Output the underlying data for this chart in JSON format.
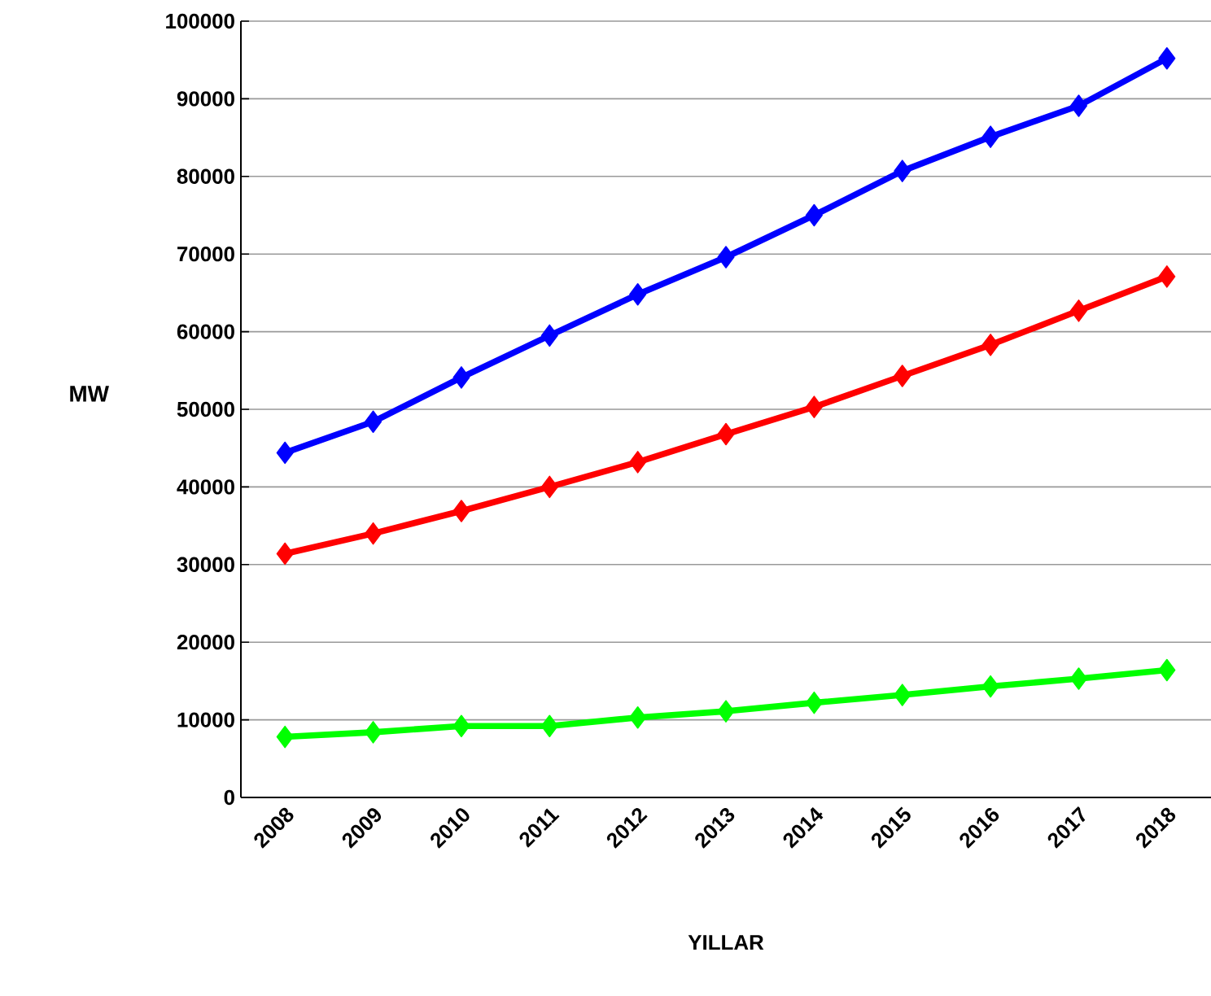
{
  "chart_data": {
    "type": "line",
    "xlabel": "YILLAR",
    "ylabel": "MW",
    "categories": [
      "2008",
      "2009",
      "2010",
      "2011",
      "2012",
      "2013",
      "2014",
      "2015",
      "2016",
      "2017",
      "2018"
    ],
    "series": [
      {
        "color": "#0000ff",
        "values": [
          44400,
          48400,
          54100,
          59500,
          64800,
          69600,
          75000,
          80700,
          85100,
          89100,
          95200
        ]
      },
      {
        "color": "#ff0000",
        "values": [
          31400,
          34000,
          36900,
          40000,
          43200,
          46800,
          50300,
          54300,
          58300,
          62700,
          67100
        ]
      },
      {
        "color": "#00ff00",
        "values": [
          7800,
          8400,
          9200,
          9200,
          10300,
          11100,
          12200,
          13200,
          14300,
          15300,
          16400
        ]
      }
    ],
    "ylim": [
      0,
      100000
    ],
    "yticks": [
      0,
      10000,
      20000,
      30000,
      40000,
      50000,
      60000,
      70000,
      80000,
      90000,
      100000
    ],
    "grid": "y",
    "marker": "diamond",
    "line_style": "solid"
  }
}
